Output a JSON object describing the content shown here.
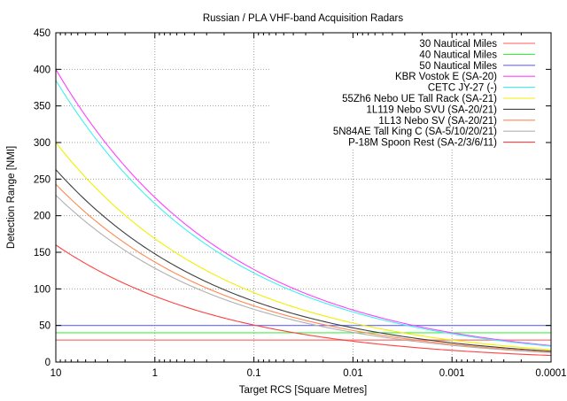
{
  "chart_data": {
    "type": "line",
    "title": "Russian / PLA VHF-band Acquisition Radars",
    "xlabel": "Target RCS [Square Metres]",
    "ylabel": "Detection Range [NMI]",
    "xscale": "log",
    "xlim": [
      10,
      0.0001
    ],
    "ylim": [
      0,
      450
    ],
    "x_ticks": [
      10,
      1,
      0.1,
      0.01,
      0.001,
      0.0001
    ],
    "x_tick_labels": [
      "10",
      "1",
      "0.1",
      "0.01",
      "0.001",
      "0.0001"
    ],
    "y_ticks": [
      0,
      50,
      100,
      150,
      200,
      250,
      300,
      350,
      400,
      450
    ],
    "y_tick_labels": [
      "0",
      "50",
      "100",
      "150",
      "200",
      "250",
      "300",
      "350",
      "400",
      "450"
    ],
    "grid": true,
    "legend_placement": "top-right",
    "model": "range proportional to RCS^(1/4); value given is range at RCS = 10",
    "series": [
      {
        "name": "30 Nautical Miles",
        "kind": "constant",
        "value": 30,
        "color": "#ff9090"
      },
      {
        "name": "40 Nautical Miles",
        "kind": "constant",
        "value": 40,
        "color": "#40f040"
      },
      {
        "name": "50 Nautical Miles",
        "kind": "constant",
        "value": 50,
        "color": "#6868ff"
      },
      {
        "name": "KBR Vostok E (SA-20)",
        "kind": "radar",
        "value": 400,
        "color": "#ff40ff"
      },
      {
        "name": "CETC JY-27 (-)",
        "kind": "radar",
        "value": 385,
        "color": "#40f0f0"
      },
      {
        "name": "55Zh6 Nebo UE Tall Rack (SA-21)",
        "kind": "radar",
        "value": 300,
        "color": "#f0f000"
      },
      {
        "name": "1L119 Nebo SVU (SA-20/21)",
        "kind": "radar",
        "value": 263,
        "color": "#404040"
      },
      {
        "name": "1L13 Nebo SV (SA-20/21)",
        "kind": "radar",
        "value": 243,
        "color": "#ff8850"
      },
      {
        "name": "5N84AE Tall King C (SA-5/10/20/21)",
        "kind": "radar",
        "value": 228,
        "color": "#b0b0b0"
      },
      {
        "name": "P-18M Spoon Rest (SA-2/3/6/11)",
        "kind": "radar",
        "value": 160,
        "color": "#ff4040"
      }
    ]
  }
}
